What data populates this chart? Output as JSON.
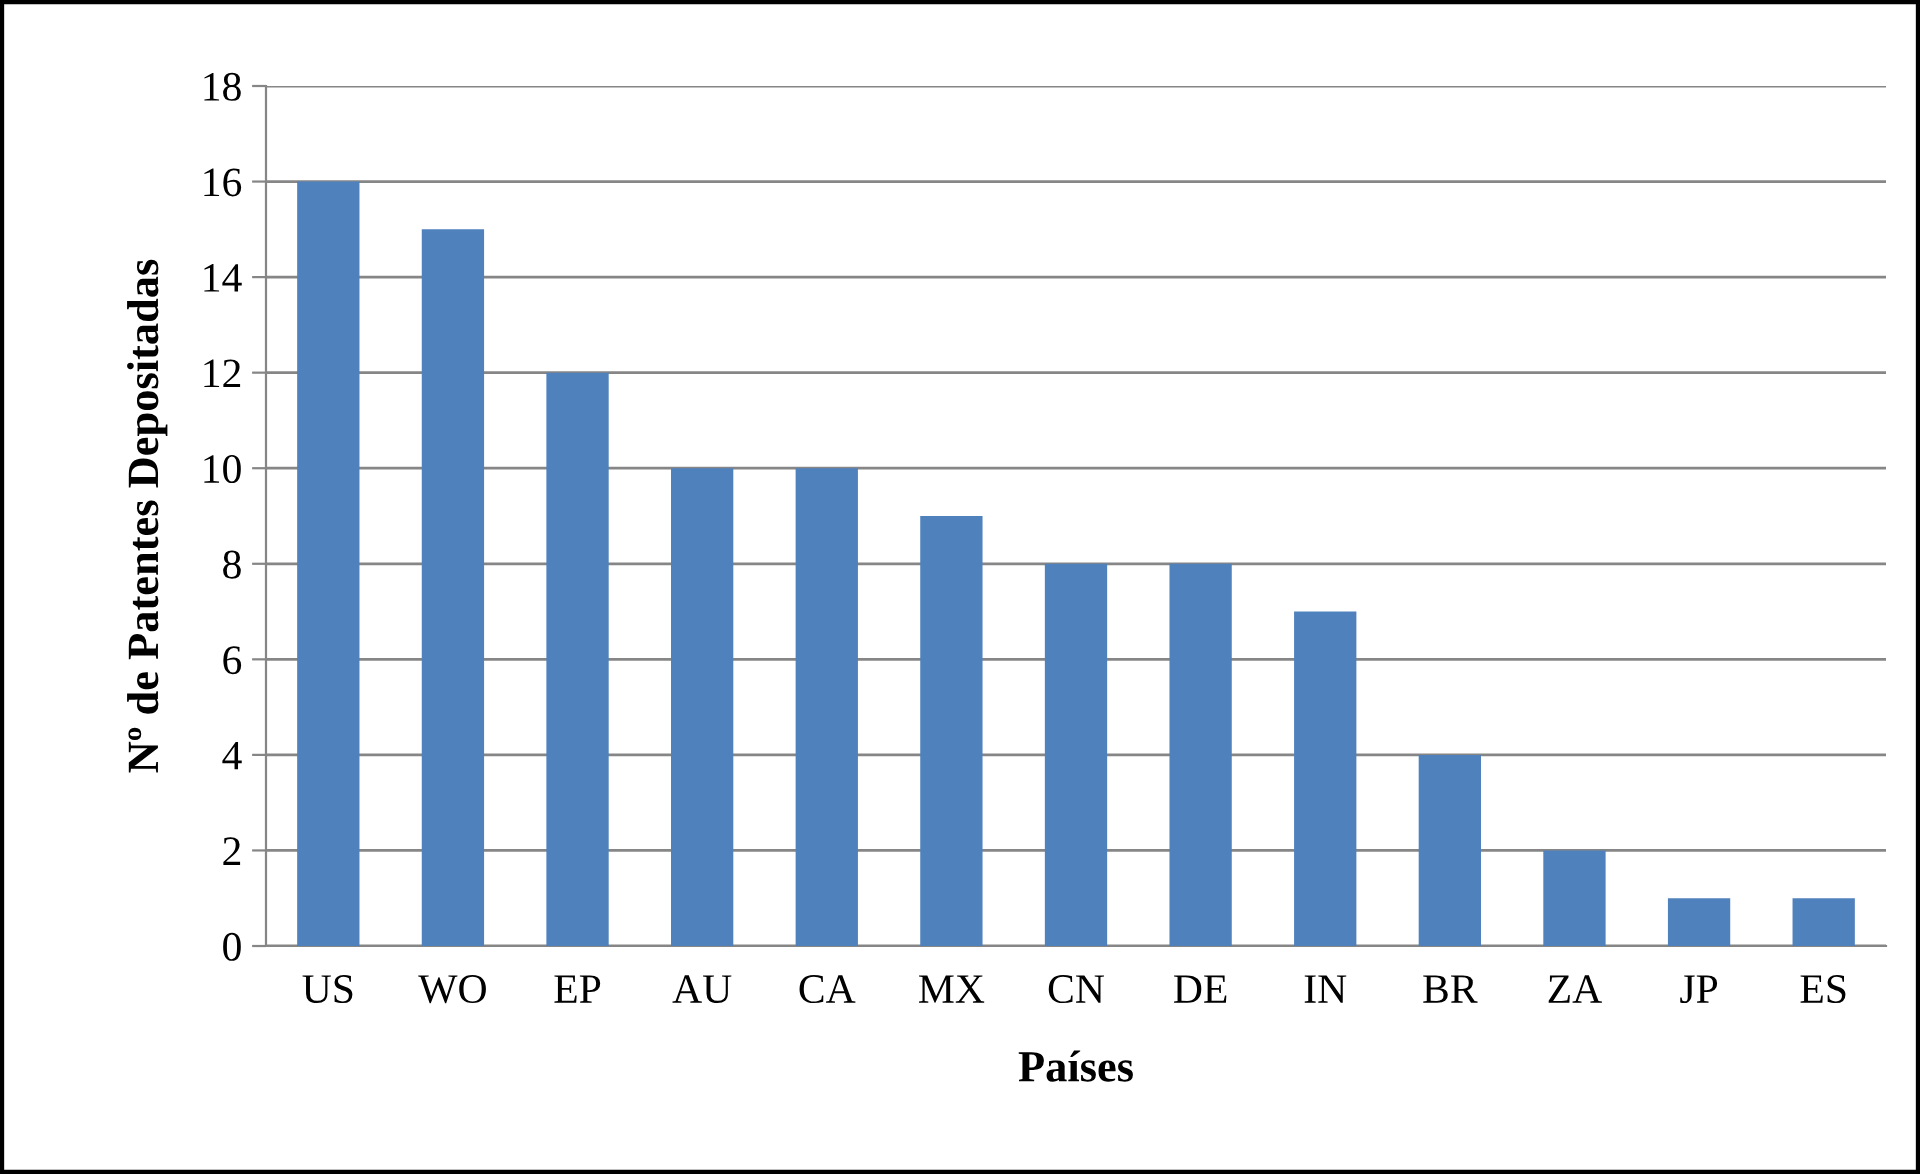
{
  "chart_data": {
    "type": "bar",
    "xlabel": "Países",
    "ylabel": "Nº de Patentes Depositadas",
    "categories": [
      "US",
      "WO",
      "EP",
      "AU",
      "CA",
      "MX",
      "CN",
      "DE",
      "IN",
      "BR",
      "ZA",
      "JP",
      "ES"
    ],
    "values": [
      16,
      15,
      12,
      10,
      10,
      9,
      8,
      8,
      7,
      4,
      2,
      1,
      1
    ],
    "color": "#4f81bd",
    "ylim": [
      0,
      18
    ],
    "yticks": [
      0,
      2,
      4,
      6,
      8,
      10,
      12,
      14,
      16,
      18
    ],
    "grid": "y",
    "legend": false
  }
}
